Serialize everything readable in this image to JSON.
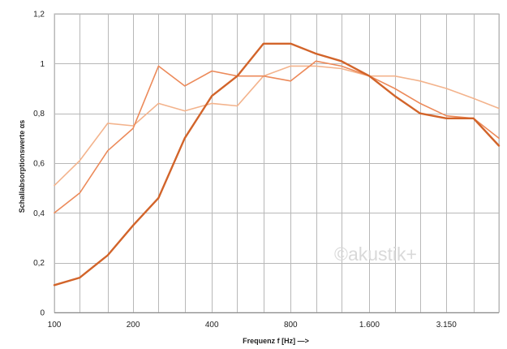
{
  "chart_data": {
    "type": "line",
    "title": "",
    "xlabel": "Frequenz f [Hz] —>",
    "ylabel": "Schallabsorptionswerte αs",
    "x_scale": "log",
    "x": [
      100,
      125,
      160,
      200,
      250,
      315,
      400,
      500,
      630,
      800,
      1000,
      1250,
      1600,
      2000,
      2500,
      3150,
      4000,
      5000
    ],
    "xticks": [
      100,
      200,
      400,
      800,
      1600,
      3150
    ],
    "xtick_labels": [
      "100",
      "200",
      "400",
      "800",
      "1.600",
      "3.150"
    ],
    "xlim": [
      100,
      5000
    ],
    "ylim": [
      0,
      1.2
    ],
    "yticks": [
      0,
      0.2,
      0.4,
      0.6,
      0.8,
      1,
      1.2
    ],
    "ytick_labels": [
      "0",
      "0,2",
      "0,4",
      "0,6",
      "0,8",
      "1",
      "1,2"
    ],
    "grid": true,
    "watermark": "©akustik+",
    "series": [
      {
        "color": "#f3b38c",
        "width": 1.6,
        "values": [
          0.51,
          0.61,
          0.76,
          0.75,
          0.84,
          0.81,
          0.84,
          0.83,
          0.95,
          0.99,
          0.99,
          0.98,
          0.95,
          0.95,
          0.93,
          0.9,
          0.86,
          0.82
        ]
      },
      {
        "color": "#ec8a5a",
        "width": 1.6,
        "values": [
          0.4,
          0.48,
          0.65,
          0.74,
          0.99,
          0.91,
          0.97,
          0.95,
          0.95,
          0.93,
          1.01,
          0.99,
          0.95,
          0.9,
          0.84,
          0.79,
          0.78,
          0.7
        ]
      },
      {
        "color": "#d2642a",
        "width": 2.4,
        "values": [
          0.11,
          0.14,
          0.23,
          0.35,
          0.46,
          0.7,
          0.87,
          0.95,
          1.08,
          1.08,
          1.04,
          1.01,
          0.95,
          0.87,
          0.8,
          0.78,
          0.78,
          0.67
        ]
      }
    ]
  }
}
